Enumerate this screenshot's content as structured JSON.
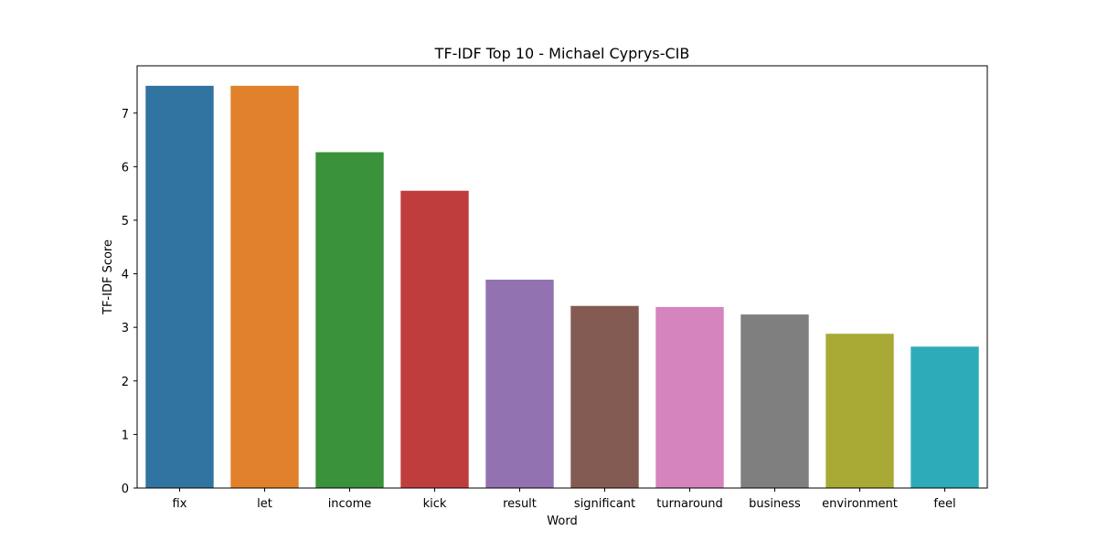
{
  "chart_data": {
    "type": "bar",
    "title": "TF-IDF Top 10 - Michael Cyprys-CIB",
    "xlabel": "Word",
    "ylabel": "TF-IDF Score",
    "categories": [
      "fix",
      "let",
      "income",
      "kick",
      "result",
      "significant",
      "turnaround",
      "business",
      "environment",
      "feel"
    ],
    "values": [
      7.51,
      7.51,
      6.27,
      5.55,
      3.89,
      3.4,
      3.38,
      3.24,
      2.88,
      2.64
    ],
    "colors": [
      "#3274a1",
      "#e1812c",
      "#3a923a",
      "#c03d3e",
      "#9372b2",
      "#845b53",
      "#d684bd",
      "#7f7f7f",
      "#a9aa35",
      "#2eabb8"
    ],
    "ylim": [
      0,
      7.883
    ],
    "yticks": [
      0,
      1,
      2,
      3,
      4,
      5,
      6,
      7
    ],
    "grid": false,
    "legend": "none"
  }
}
